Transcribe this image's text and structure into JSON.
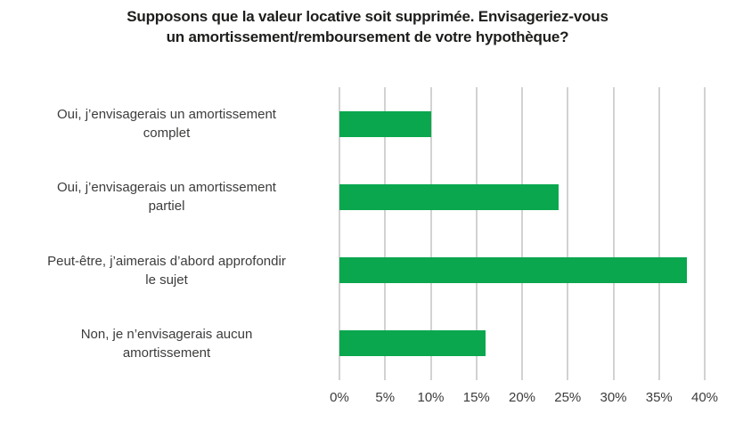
{
  "chart_data": {
    "type": "bar",
    "orientation": "horizontal",
    "title": "Supposons que la valeur locative soit supprimée. Envisageriez-vous un amortissement/remboursement de votre hypothèque?",
    "title_lines": [
      "Supposons que la valeur locative soit supprimée. Envisageriez-vous",
      "un amortissement/remboursement de votre hypothèque?"
    ],
    "categories": [
      "Oui, j’envisagerais un amortissement complet",
      "Oui, j’envisagerais un amortissement partiel",
      "Peut-être, j’aimerais d’abord approfondir le sujet",
      "Non, je n’envisagerais aucun amortissement"
    ],
    "category_lines": [
      [
        "Oui, j’envisagerais un amortissement",
        "complet"
      ],
      [
        "Oui, j’envisagerais un amortissement",
        "partiel"
      ],
      [
        "Peut-être, j’aimerais d’abord approfondir",
        "le sujet"
      ],
      [
        "Non, je n’envisagerais aucun",
        "amortissement"
      ]
    ],
    "values": [
      10,
      24,
      38,
      16
    ],
    "unit": "%",
    "x_ticks": [
      "0%",
      "5%",
      "10%",
      "15%",
      "20%",
      "25%",
      "30%",
      "35%",
      "40%"
    ],
    "xlim": [
      0,
      40
    ],
    "grid": "vertical-only",
    "legend": "none",
    "bar_color": "#0aa74e",
    "gridline_color": "#d2d2d2",
    "title_color": "#1d1d1b",
    "text_color": "#3c3c3b",
    "background_color": "#ffffff"
  }
}
